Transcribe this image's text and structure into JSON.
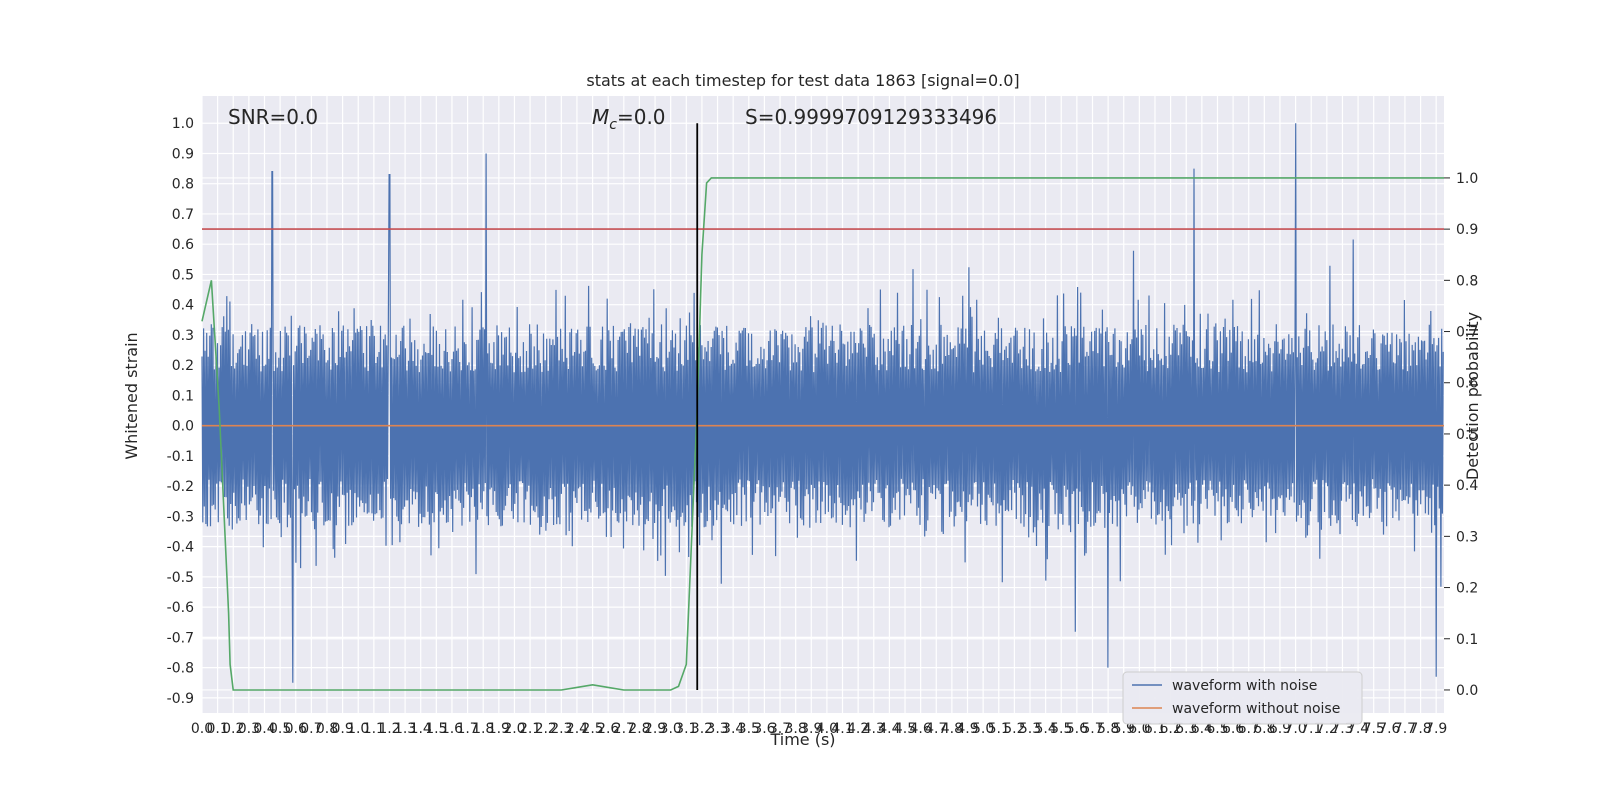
{
  "chart_data": {
    "type": "line",
    "title": "stats at each timestep for test data 1863 [signal=0.0]",
    "xlabel": "Time (s)",
    "ylabel": "Whitened strain",
    "y2label": "Detection probability",
    "xlim": [
      0.0,
      7.95
    ],
    "ylim": [
      -0.95,
      1.09
    ],
    "y2lim": [
      -0.045,
      1.16
    ],
    "x_ticks": [
      0.0,
      0.1,
      0.2,
      0.3,
      0.4,
      0.5,
      0.6,
      0.7,
      0.8,
      0.9,
      1.0,
      1.1,
      1.2,
      1.3,
      1.4,
      1.5,
      1.6,
      1.7,
      1.8,
      1.9,
      2.0,
      2.1,
      2.2,
      2.3,
      2.4,
      2.5,
      2.6,
      2.7,
      2.8,
      2.9,
      3.0,
      3.1,
      3.2,
      3.3,
      3.4,
      3.5,
      3.6,
      3.7,
      3.8,
      3.9,
      4.0,
      4.1,
      4.2,
      4.3,
      4.4,
      4.5,
      4.6,
      4.7,
      4.8,
      4.9,
      5.0,
      5.1,
      5.2,
      5.3,
      5.4,
      5.5,
      5.6,
      5.7,
      5.8,
      5.9,
      6.0,
      6.1,
      6.2,
      6.3,
      6.4,
      6.5,
      6.6,
      6.7,
      6.8,
      6.9,
      7.0,
      7.1,
      7.2,
      7.3,
      7.4,
      7.5,
      7.6,
      7.7,
      7.8,
      7.9
    ],
    "y_ticks": [
      -0.9,
      -0.8,
      -0.7,
      -0.6,
      -0.5,
      -0.4,
      -0.3,
      -0.2,
      -0.1,
      0.0,
      0.1,
      0.2,
      0.3,
      0.4,
      0.5,
      0.6,
      0.7,
      0.8,
      0.9,
      1.0
    ],
    "y2_ticks": [
      0.0,
      0.1,
      0.2,
      0.3,
      0.4,
      0.5,
      0.6,
      0.7,
      0.8,
      0.9,
      1.0
    ],
    "grid": true,
    "legend_position": "lower-right",
    "annotations": [
      {
        "text": "SNR=0.0"
      },
      {
        "text_main": "M",
        "text_sub": "c",
        "text_rest": "=0.0"
      },
      {
        "text": "S=0.9999709129333496"
      }
    ],
    "threshold_prob": 0.9,
    "event_time": 3.17,
    "noise": {
      "typical_amplitude": 0.32,
      "peak_max": [
        0.85,
        1.0
      ],
      "peak_min": [
        -0.85,
        -0.85
      ],
      "notable_peaks": [
        [
          0.45,
          0.84
        ],
        [
          1.2,
          0.83
        ],
        [
          1.82,
          0.9
        ],
        [
          6.35,
          0.85
        ],
        [
          7.0,
          1.0
        ],
        [
          0.58,
          -0.85
        ],
        [
          7.9,
          -0.83
        ],
        [
          5.8,
          -0.8
        ]
      ]
    },
    "series": [
      {
        "name": "waveform with noise",
        "color": "#4c72b0",
        "axis": "left"
      },
      {
        "name": "waveform without noise",
        "color": "#dd8452",
        "axis": "left",
        "x": [
          0.0,
          7.95
        ],
        "y": [
          0.0,
          0.0
        ]
      },
      {
        "axis": "right",
        "color": "#55a868",
        "x": [
          0.0,
          0.06,
          0.11,
          0.17,
          0.18,
          0.2,
          0.3,
          0.5,
          1.0,
          1.5,
          2.0,
          2.3,
          2.4,
          2.5,
          2.6,
          2.7,
          3.0,
          3.05,
          3.1,
          3.17,
          3.2,
          3.23,
          3.26,
          3.3,
          4.0,
          5.0,
          6.0,
          7.0,
          7.95
        ],
        "y": [
          0.72,
          0.8,
          0.55,
          0.15,
          0.05,
          0.0,
          0.0,
          0.0,
          0.0,
          0.0,
          0.0,
          0.0,
          0.005,
          0.01,
          0.005,
          0.0,
          0.0,
          0.007,
          0.05,
          0.55,
          0.85,
          0.99,
          1.0,
          1.0,
          1.0,
          1.0,
          1.0,
          1.0,
          1.0
        ]
      },
      {
        "axis": "right",
        "color": "#c44e52",
        "x": [
          0.0,
          7.95
        ],
        "y": [
          0.9,
          0.9
        ]
      }
    ]
  },
  "legend": {
    "items": [
      {
        "label": "waveform with noise",
        "color": "#4c72b0"
      },
      {
        "label": "waveform without noise",
        "color": "#dd8452"
      }
    ]
  }
}
